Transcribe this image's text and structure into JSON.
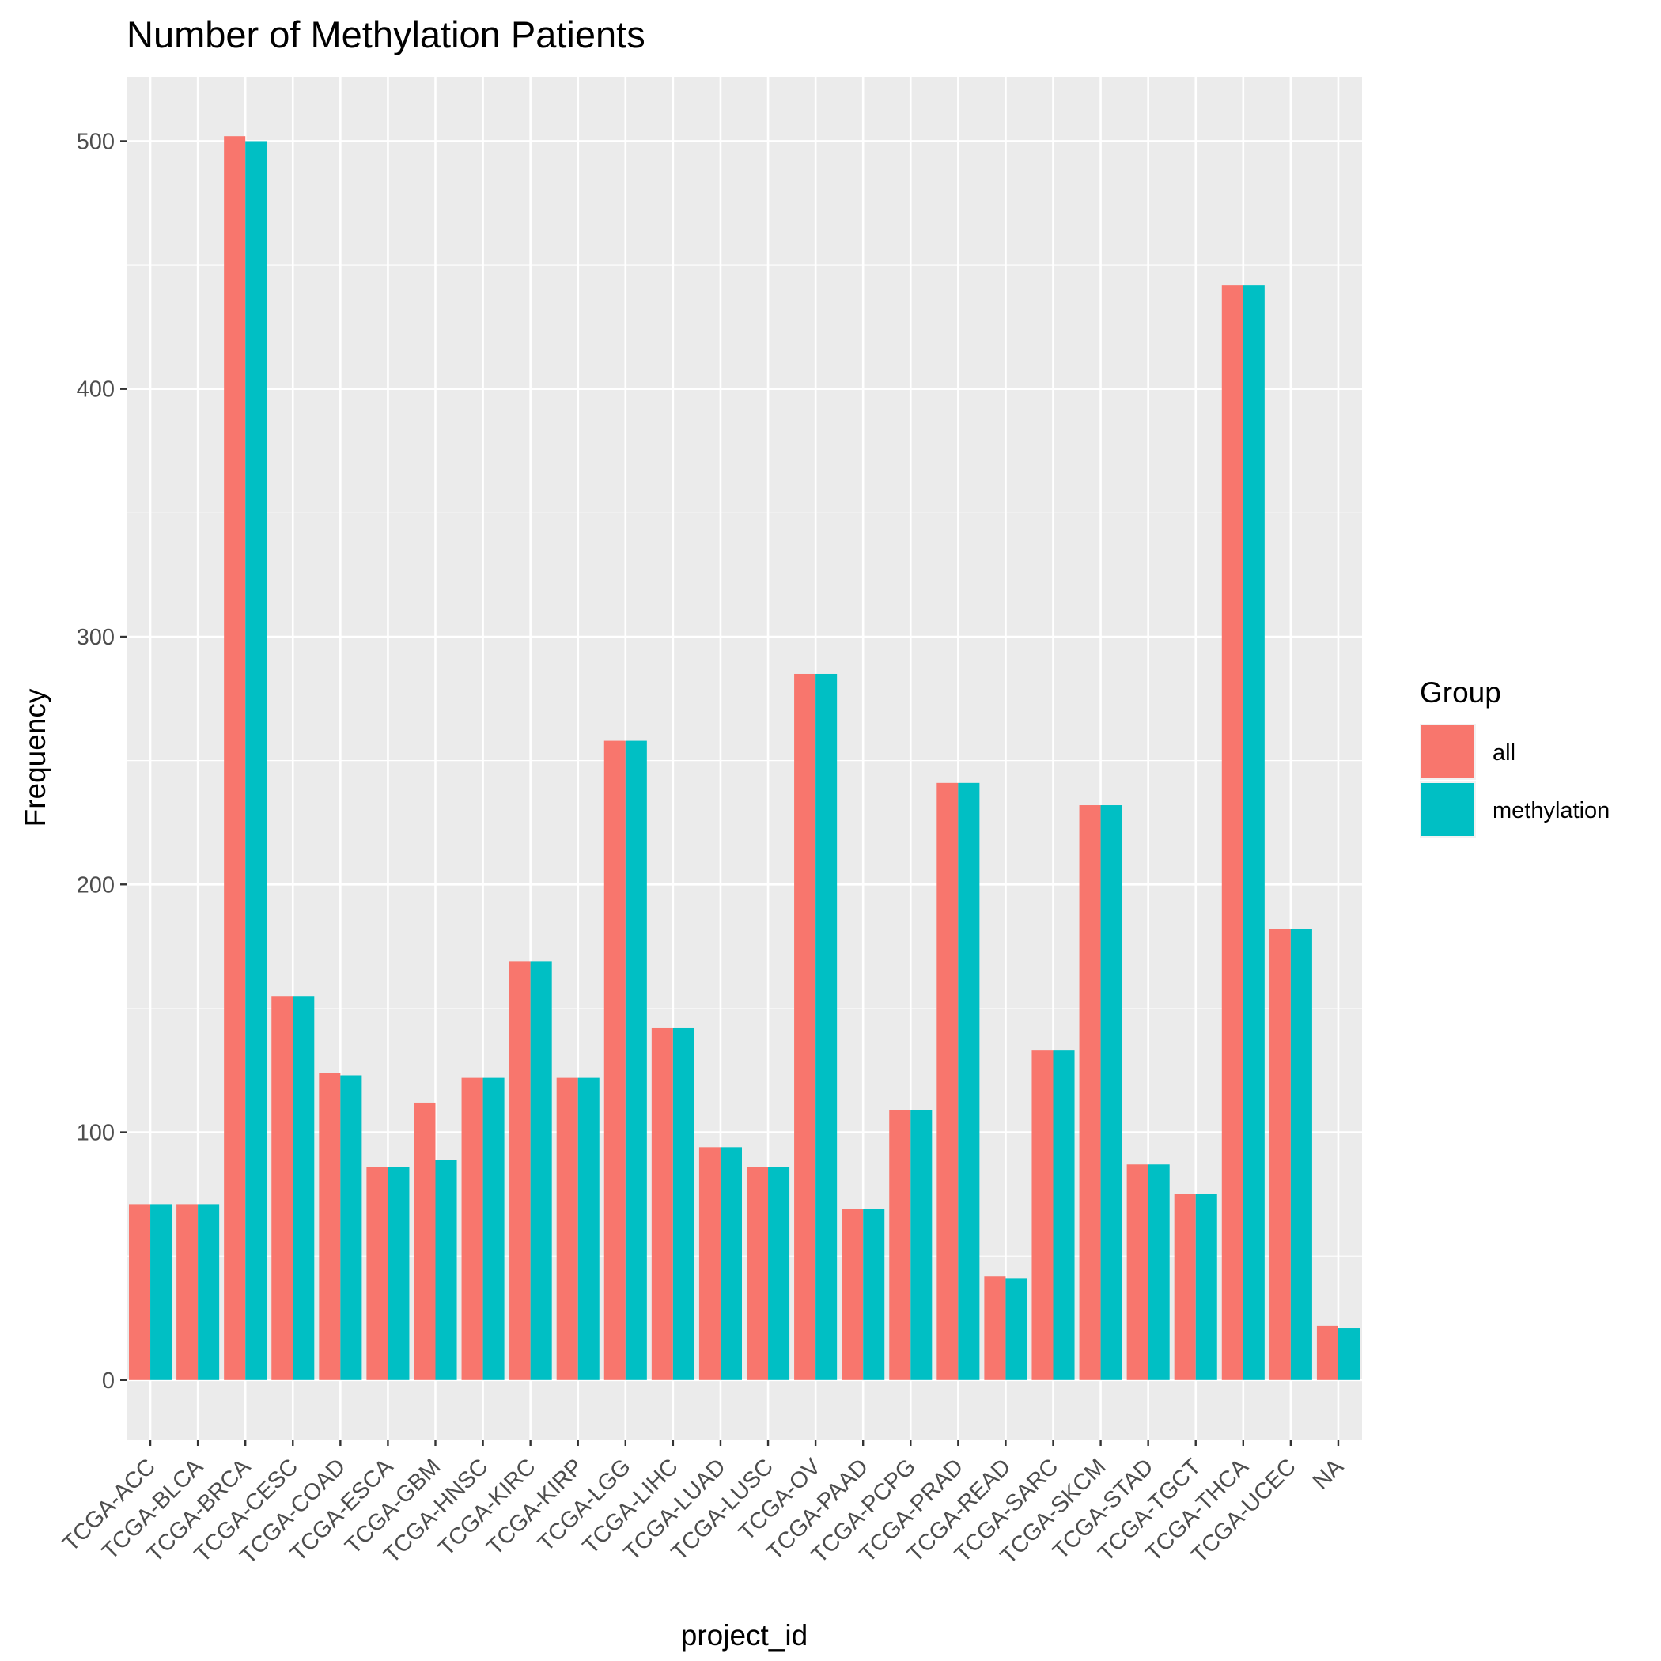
{
  "chart_data": {
    "type": "bar",
    "title": "Number of Methylation Patients",
    "xlabel": "project_id",
    "ylabel": "Frequency",
    "ylim": [
      -24,
      526
    ],
    "yticks": [
      0,
      100,
      200,
      300,
      400,
      500
    ],
    "grid": true,
    "legend": {
      "title": "Group",
      "position": "right"
    },
    "categories": [
      "TCGA-ACC",
      "TCGA-BLCA",
      "TCGA-BRCA",
      "TCGA-CESC",
      "TCGA-COAD",
      "TCGA-ESCA",
      "TCGA-GBM",
      "TCGA-HNSC",
      "TCGA-KIRC",
      "TCGA-KIRP",
      "TCGA-LGG",
      "TCGA-LIHC",
      "TCGA-LUAD",
      "TCGA-LUSC",
      "TCGA-OV",
      "TCGA-PAAD",
      "TCGA-PCPG",
      "TCGA-PRAD",
      "TCGA-READ",
      "TCGA-SARC",
      "TCGA-SKCM",
      "TCGA-STAD",
      "TCGA-TGCT",
      "TCGA-THCA",
      "TCGA-UCEC",
      "NA"
    ],
    "series": [
      {
        "name": "all",
        "color": "#F8766D",
        "values": [
          71,
          71,
          502,
          155,
          124,
          86,
          112,
          122,
          169,
          122,
          258,
          142,
          94,
          86,
          285,
          69,
          109,
          241,
          42,
          133,
          232,
          87,
          75,
          442,
          182,
          22
        ]
      },
      {
        "name": "methylation",
        "color": "#00BFC4",
        "values": [
          71,
          71,
          500,
          155,
          123,
          86,
          89,
          122,
          169,
          122,
          258,
          142,
          94,
          86,
          285,
          69,
          109,
          241,
          41,
          133,
          232,
          87,
          75,
          442,
          182,
          21
        ]
      }
    ]
  }
}
